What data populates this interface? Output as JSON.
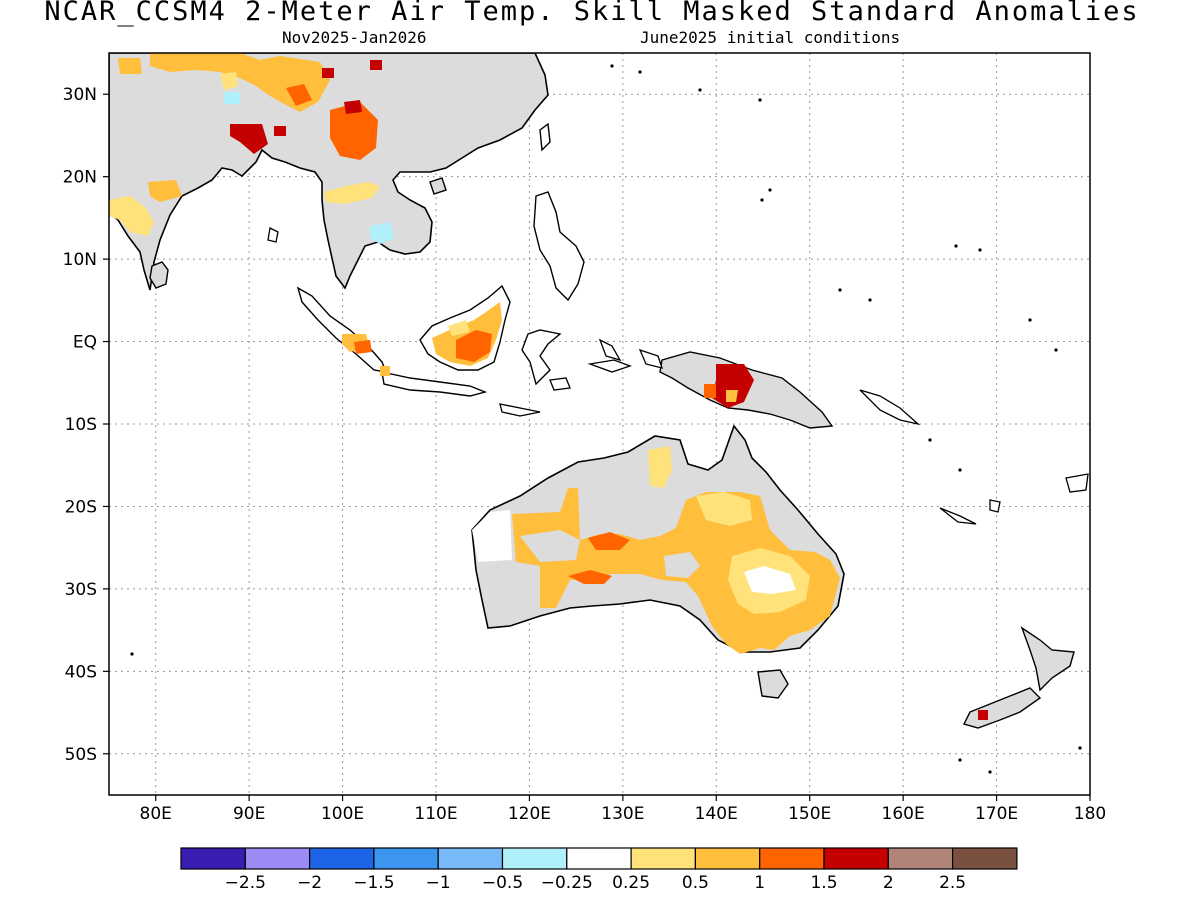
{
  "title": "NCAR_CCSM4 2-Meter Air Temp. Skill Masked Standard Anomalies",
  "subtitle_left": "Nov2025-Jan2026",
  "subtitle_right": "June2025 initial conditions",
  "map": {
    "projection": "cylindrical",
    "lon_range": [
      75,
      180
    ],
    "lat_range": [
      -55,
      35
    ],
    "lat_ticks": [
      {
        "lat": 30,
        "label": "30N"
      },
      {
        "lat": 20,
        "label": "20N"
      },
      {
        "lat": 10,
        "label": "10N"
      },
      {
        "lat": 0,
        "label": "EQ"
      },
      {
        "lat": -10,
        "label": "10S"
      },
      {
        "lat": -20,
        "label": "20S"
      },
      {
        "lat": -30,
        "label": "30S"
      },
      {
        "lat": -40,
        "label": "40S"
      },
      {
        "lat": -50,
        "label": "50S"
      }
    ],
    "lon_ticks": [
      {
        "lon": 80,
        "label": "80E"
      },
      {
        "lon": 90,
        "label": "90E"
      },
      {
        "lon": 100,
        "label": "100E"
      },
      {
        "lon": 110,
        "label": "110E"
      },
      {
        "lon": 120,
        "label": "120E"
      },
      {
        "lon": 130,
        "label": "130E"
      },
      {
        "lon": 140,
        "label": "140E"
      },
      {
        "lon": 150,
        "label": "150E"
      },
      {
        "lon": 160,
        "label": "160E"
      },
      {
        "lon": 170,
        "label": "170E"
      },
      {
        "lon": 180,
        "label": "180"
      }
    ],
    "grid": "dotted",
    "colors": {
      "land_masked": "#dcdcdc",
      "coastline": "#000000",
      "grid": "#9a9a9a"
    }
  },
  "colorbar": {
    "bins": [
      "#3a1eb4",
      "#9a8cf4",
      "#1e64e6",
      "#3c96f0",
      "#78b9f8",
      "#b0f0fa",
      "#ffffff",
      "#ffe27a",
      "#ffbe3c",
      "#ff6400",
      "#c40000",
      "#b08478",
      "#7a5040"
    ],
    "labels": [
      "-2.5",
      "-2",
      "-1.5",
      "-1",
      "-0.5",
      "-0.25",
      "0.25",
      "0.5",
      "1",
      "1.5",
      "2",
      "2.5"
    ]
  }
}
